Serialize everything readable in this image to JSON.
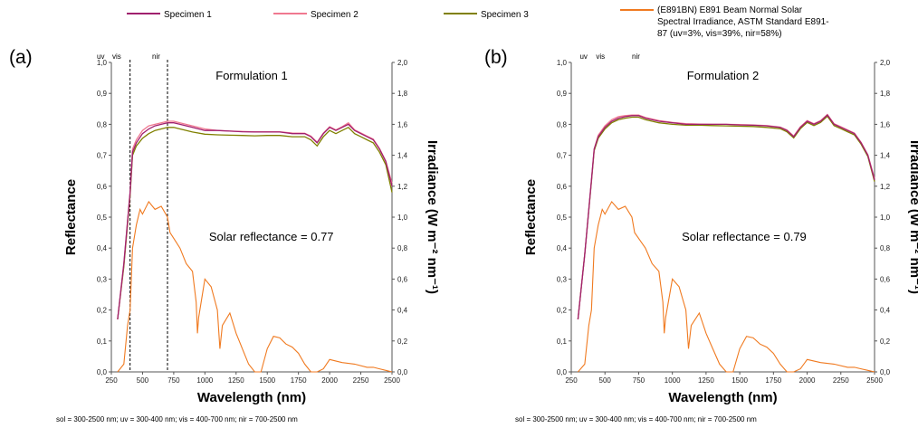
{
  "legend": [
    {
      "label": "Specimen 1",
      "color": "#a0206e"
    },
    {
      "label": "Specimen 2",
      "color": "#f07890"
    },
    {
      "label": "Specimen 3",
      "color": "#808000"
    },
    {
      "label_lines": [
        "(E891BN) E891 Beam Normal Solar",
        "Spectral Irradiance, ASTM Standard E891-",
        "87 (uv=3%, vis=39%, nir=58%)"
      ],
      "color": "#f07a20"
    }
  ],
  "chart_data": [
    {
      "type": "line",
      "panel_label": "(a)",
      "title": "Formulation 1",
      "annotation": "Solar reflectance = 0.77",
      "xlabel": "Wavelength (nm)",
      "ylabel": "Reflectance",
      "y2label": "Irradiance (W m⁻² nm⁻¹)",
      "xlim": [
        250,
        2500
      ],
      "ylim": [
        0.0,
        1.0
      ],
      "y2lim": [
        0.0,
        2.0
      ],
      "xticks": [
        "250",
        "500",
        "750",
        "1000",
        "1250",
        "1500",
        "1750",
        "2000",
        "2250",
        "2500"
      ],
      "yticks": [
        "0,0",
        "0,1",
        "0,2",
        "0,3",
        "0,4",
        "0,5",
        "0,6",
        "0,7",
        "0,8",
        "0,9",
        "1,0"
      ],
      "y2ticks": [
        "0,0",
        "0,2",
        "0,4",
        "0,6",
        "0,8",
        "1,0",
        "1,2",
        "1,4",
        "1,6",
        "1,8",
        "2,0"
      ],
      "regions": [
        "uv",
        "vis",
        "nir"
      ],
      "region_bounds": [
        400,
        700
      ],
      "footnote": "sol = 300-2500 nm; uv = 300-400 nm; vis = 400-700 nm; nir = 700-2500 nm",
      "series": [
        {
          "axis": "left",
          "x": [
            300,
            350,
            400,
            420,
            450,
            500,
            550,
            600,
            650,
            700,
            750,
            800,
            900,
            1000,
            1100,
            1200,
            1300,
            1400,
            1500,
            1600,
            1700,
            1800,
            1850,
            1900,
            1950,
            2000,
            2050,
            2100,
            2150,
            2200,
            2250,
            2300,
            2350,
            2400,
            2450,
            2500
          ],
          "y": [
            0.17,
            0.35,
            0.58,
            0.71,
            0.74,
            0.77,
            0.785,
            0.795,
            0.8,
            0.805,
            0.805,
            0.8,
            0.79,
            0.78,
            0.78,
            0.778,
            0.776,
            0.775,
            0.775,
            0.775,
            0.77,
            0.77,
            0.76,
            0.74,
            0.77,
            0.79,
            0.78,
            0.79,
            0.8,
            0.78,
            0.77,
            0.76,
            0.75,
            0.72,
            0.68,
            0.6
          ]
        },
        {
          "axis": "left",
          "x": [
            300,
            350,
            400,
            420,
            450,
            500,
            550,
            600,
            650,
            700,
            750,
            800,
            900,
            1000,
            1100,
            1200,
            1300,
            1400,
            1500,
            1600,
            1700,
            1800,
            1850,
            1900,
            1950,
            2000,
            2050,
            2100,
            2150,
            2200,
            2250,
            2300,
            2350,
            2400,
            2450,
            2500
          ],
          "y": [
            0.17,
            0.35,
            0.58,
            0.72,
            0.75,
            0.78,
            0.795,
            0.8,
            0.805,
            0.81,
            0.81,
            0.805,
            0.795,
            0.785,
            0.78,
            0.778,
            0.777,
            0.776,
            0.776,
            0.776,
            0.772,
            0.771,
            0.762,
            0.742,
            0.772,
            0.792,
            0.782,
            0.792,
            0.805,
            0.782,
            0.772,
            0.762,
            0.752,
            0.722,
            0.682,
            0.61
          ]
        },
        {
          "axis": "left",
          "x": [
            300,
            350,
            400,
            420,
            450,
            500,
            550,
            600,
            650,
            700,
            750,
            800,
            900,
            1000,
            1100,
            1200,
            1300,
            1400,
            1500,
            1600,
            1700,
            1800,
            1850,
            1900,
            1950,
            2000,
            2050,
            2100,
            2150,
            2200,
            2250,
            2300,
            2350,
            2400,
            2450,
            2500
          ],
          "y": [
            0.17,
            0.34,
            0.57,
            0.7,
            0.73,
            0.755,
            0.77,
            0.78,
            0.785,
            0.79,
            0.79,
            0.785,
            0.775,
            0.768,
            0.766,
            0.765,
            0.764,
            0.763,
            0.764,
            0.764,
            0.76,
            0.76,
            0.75,
            0.73,
            0.76,
            0.78,
            0.77,
            0.78,
            0.79,
            0.77,
            0.76,
            0.75,
            0.74,
            0.71,
            0.67,
            0.58
          ]
        },
        {
          "axis": "right",
          "x": [
            300,
            350,
            380,
            400,
            420,
            450,
            480,
            500,
            550,
            600,
            650,
            700,
            720,
            760,
            800,
            850,
            900,
            930,
            940,
            950,
            1000,
            1050,
            1100,
            1120,
            1140,
            1200,
            1250,
            1300,
            1350,
            1400,
            1450,
            1500,
            1550,
            1600,
            1650,
            1700,
            1750,
            1800,
            1850,
            1900,
            1950,
            2000,
            2100,
            2200,
            2300,
            2350,
            2400,
            2450,
            2500
          ],
          "y": [
            0.0,
            0.05,
            0.3,
            0.4,
            0.8,
            0.95,
            1.05,
            1.02,
            1.1,
            1.05,
            1.07,
            1.0,
            0.9,
            0.85,
            0.8,
            0.7,
            0.65,
            0.45,
            0.25,
            0.35,
            0.6,
            0.55,
            0.4,
            0.15,
            0.3,
            0.38,
            0.25,
            0.15,
            0.05,
            0.0,
            0.0,
            0.15,
            0.23,
            0.22,
            0.18,
            0.16,
            0.12,
            0.05,
            0.0,
            0.0,
            0.02,
            0.08,
            0.06,
            0.05,
            0.03,
            0.03,
            0.02,
            0.01,
            0.0
          ]
        }
      ]
    },
    {
      "type": "line",
      "panel_label": "(b)",
      "title": "Formulation 2",
      "annotation": "Solar reflectance = 0.79",
      "xlabel": "Wavelength (nm)",
      "ylabel": "Reflectance",
      "y2label": "Irradiance (W m⁻² nm⁻¹)",
      "xlim": [
        250,
        2500
      ],
      "ylim": [
        0.0,
        1.0
      ],
      "y2lim": [
        0.0,
        2.0
      ],
      "xticks": [
        "250",
        "500",
        "750",
        "1000",
        "1250",
        "1500",
        "1750",
        "2000",
        "2250",
        "2500"
      ],
      "yticks": [
        "0,0",
        "0,1",
        "0,2",
        "0,3",
        "0,4",
        "0,5",
        "0,6",
        "0,7",
        "0,8",
        "0,9",
        "1,0"
      ],
      "y2ticks": [
        "0,0",
        "0,2",
        "0,4",
        "0,6",
        "0,8",
        "1,0",
        "1,2",
        "1,4",
        "1,6",
        "1,8",
        "2,0"
      ],
      "regions": [
        "uv",
        "vis",
        "nir"
      ],
      "region_bounds": [],
      "footnote": "sol = 300-2500 nm; uv = 300-400 nm; vis = 400-700 nm; nir = 700-2500 nm",
      "series": [
        {
          "axis": "left",
          "x": [
            300,
            350,
            400,
            420,
            450,
            500,
            550,
            600,
            650,
            700,
            750,
            800,
            900,
            1000,
            1100,
            1200,
            1300,
            1400,
            1500,
            1600,
            1700,
            1800,
            1850,
            1900,
            1950,
            2000,
            2050,
            2100,
            2150,
            2200,
            2250,
            2300,
            2350,
            2400,
            2450,
            2500
          ],
          "y": [
            0.17,
            0.38,
            0.62,
            0.72,
            0.76,
            0.79,
            0.81,
            0.82,
            0.825,
            0.828,
            0.828,
            0.82,
            0.81,
            0.805,
            0.8,
            0.8,
            0.8,
            0.8,
            0.798,
            0.797,
            0.795,
            0.79,
            0.78,
            0.76,
            0.79,
            0.81,
            0.8,
            0.81,
            0.83,
            0.8,
            0.79,
            0.78,
            0.77,
            0.74,
            0.7,
            0.62
          ]
        },
        {
          "axis": "left",
          "x": [
            300,
            350,
            400,
            420,
            450,
            500,
            550,
            600,
            650,
            700,
            750,
            800,
            900,
            1000,
            1100,
            1200,
            1300,
            1400,
            1500,
            1600,
            1700,
            1800,
            1850,
            1900,
            1950,
            2000,
            2050,
            2100,
            2150,
            2200,
            2250,
            2300,
            2350,
            2400,
            2450,
            2500
          ],
          "y": [
            0.17,
            0.38,
            0.62,
            0.72,
            0.765,
            0.795,
            0.815,
            0.825,
            0.828,
            0.83,
            0.83,
            0.822,
            0.812,
            0.806,
            0.802,
            0.801,
            0.8,
            0.8,
            0.799,
            0.798,
            0.796,
            0.791,
            0.782,
            0.762,
            0.792,
            0.812,
            0.802,
            0.812,
            0.832,
            0.802,
            0.792,
            0.782,
            0.772,
            0.742,
            0.702,
            0.625
          ]
        },
        {
          "axis": "left",
          "x": [
            300,
            350,
            400,
            420,
            450,
            500,
            550,
            600,
            650,
            700,
            750,
            800,
            900,
            1000,
            1100,
            1200,
            1300,
            1400,
            1500,
            1600,
            1700,
            1800,
            1850,
            1900,
            1950,
            2000,
            2050,
            2100,
            2150,
            2200,
            2250,
            2300,
            2350,
            2400,
            2450,
            2500
          ],
          "y": [
            0.17,
            0.38,
            0.615,
            0.715,
            0.755,
            0.785,
            0.805,
            0.815,
            0.82,
            0.823,
            0.823,
            0.815,
            0.805,
            0.8,
            0.797,
            0.797,
            0.796,
            0.795,
            0.794,
            0.793,
            0.79,
            0.786,
            0.776,
            0.756,
            0.786,
            0.806,
            0.796,
            0.806,
            0.826,
            0.796,
            0.786,
            0.776,
            0.766,
            0.736,
            0.696,
            0.615
          ]
        },
        {
          "axis": "right",
          "x": [
            300,
            350,
            380,
            400,
            420,
            450,
            480,
            500,
            550,
            600,
            650,
            700,
            720,
            760,
            800,
            850,
            900,
            930,
            940,
            950,
            1000,
            1050,
            1100,
            1120,
            1140,
            1200,
            1250,
            1300,
            1350,
            1400,
            1450,
            1500,
            1550,
            1600,
            1650,
            1700,
            1750,
            1800,
            1850,
            1900,
            1950,
            2000,
            2100,
            2200,
            2300,
            2350,
            2400,
            2450,
            2500
          ],
          "y": [
            0.0,
            0.05,
            0.3,
            0.4,
            0.8,
            0.95,
            1.05,
            1.02,
            1.1,
            1.05,
            1.07,
            1.0,
            0.9,
            0.85,
            0.8,
            0.7,
            0.65,
            0.45,
            0.25,
            0.35,
            0.6,
            0.55,
            0.4,
            0.15,
            0.3,
            0.38,
            0.25,
            0.15,
            0.05,
            0.0,
            0.0,
            0.15,
            0.23,
            0.22,
            0.18,
            0.16,
            0.12,
            0.05,
            0.0,
            0.0,
            0.02,
            0.08,
            0.06,
            0.05,
            0.03,
            0.03,
            0.02,
            0.01,
            0.0
          ]
        }
      ]
    }
  ]
}
